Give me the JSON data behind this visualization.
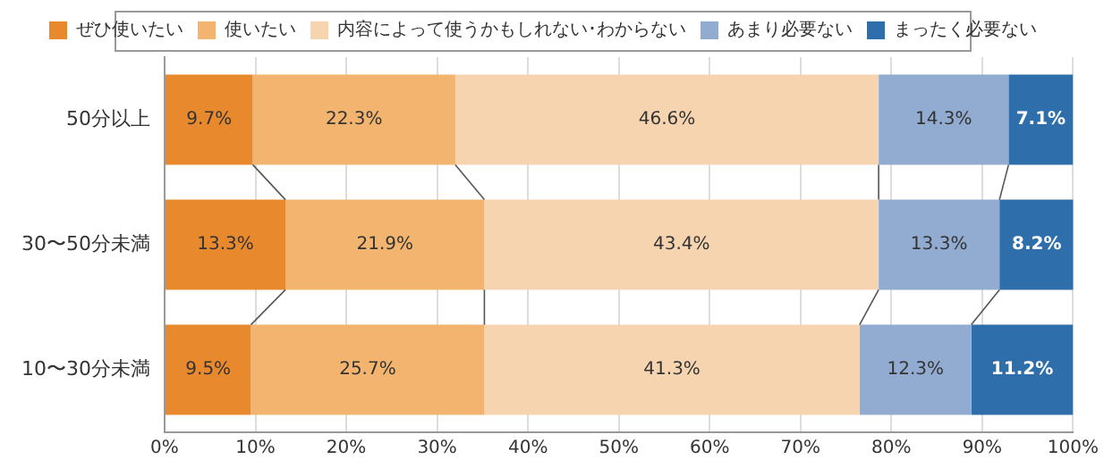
{
  "chart_data": {
    "type": "bar",
    "orientation": "horizontal",
    "stacked": true,
    "categories": [
      "50分以上",
      "30〜50分未満",
      "10〜30分未満"
    ],
    "series": [
      {
        "name": "ぜひ使いたい",
        "color": "#e8892e",
        "values": [
          9.7,
          13.3,
          9.5
        ],
        "value_labels": [
          "9.7%",
          "13.3%",
          "9.5%"
        ]
      },
      {
        "name": "使いたい",
        "color": "#f2b46e",
        "values": [
          22.3,
          21.9,
          25.7
        ],
        "value_labels": [
          "22.3%",
          "21.9%",
          "25.7%"
        ]
      },
      {
        "name": "内容によって使うかもしれない･わからない",
        "color": "#f6d4b0",
        "values": [
          46.6,
          43.4,
          41.3
        ],
        "value_labels": [
          "46.6%",
          "43.4%",
          "41.3%"
        ]
      },
      {
        "name": "あまり必要ない",
        "color": "#91acd0",
        "values": [
          14.3,
          13.3,
          12.3
        ],
        "value_labels": [
          "14.3%",
          "13.3%",
          "12.3%"
        ]
      },
      {
        "name": "まったく必要ない",
        "color": "#2e6fab",
        "values": [
          7.1,
          8.2,
          11.2
        ],
        "value_labels": [
          "7.1%",
          "8.2%",
          "11.2%"
        ]
      }
    ],
    "xlim": [
      0,
      100
    ],
    "xticks": [
      {
        "value": 0,
        "label": "0%"
      },
      {
        "value": 10,
        "label": "10%"
      },
      {
        "value": 20,
        "label": "20%"
      },
      {
        "value": 30,
        "label": "30%"
      },
      {
        "value": 40,
        "label": "40%"
      },
      {
        "value": 50,
        "label": "50%"
      },
      {
        "value": 60,
        "label": "60%"
      },
      {
        "value": 70,
        "label": "70%"
      },
      {
        "value": 80,
        "label": "80%"
      },
      {
        "value": 90,
        "label": "90%"
      },
      {
        "value": 100,
        "label": "100%"
      }
    ],
    "grid": "x",
    "legend": "top"
  }
}
